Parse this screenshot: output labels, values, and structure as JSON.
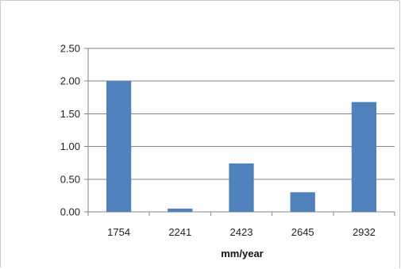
{
  "chart_data": {
    "type": "bar",
    "title": "",
    "xlabel": "mm/year",
    "ylabel": "",
    "categories": [
      "1754",
      "2241",
      "2423",
      "2645",
      "2932"
    ],
    "series": [
      {
        "values": [
          2.0,
          0.05,
          0.74,
          0.3,
          1.68
        ]
      }
    ],
    "ylim": [
      0,
      2.5
    ],
    "yticks": [
      "0.00",
      "0.50",
      "1.00",
      "1.50",
      "2.00",
      "2.50"
    ],
    "grid": true,
    "legend": "none",
    "colors": {
      "bar": "#4f81bd",
      "grid": "#868686",
      "axis": "#868686"
    }
  }
}
